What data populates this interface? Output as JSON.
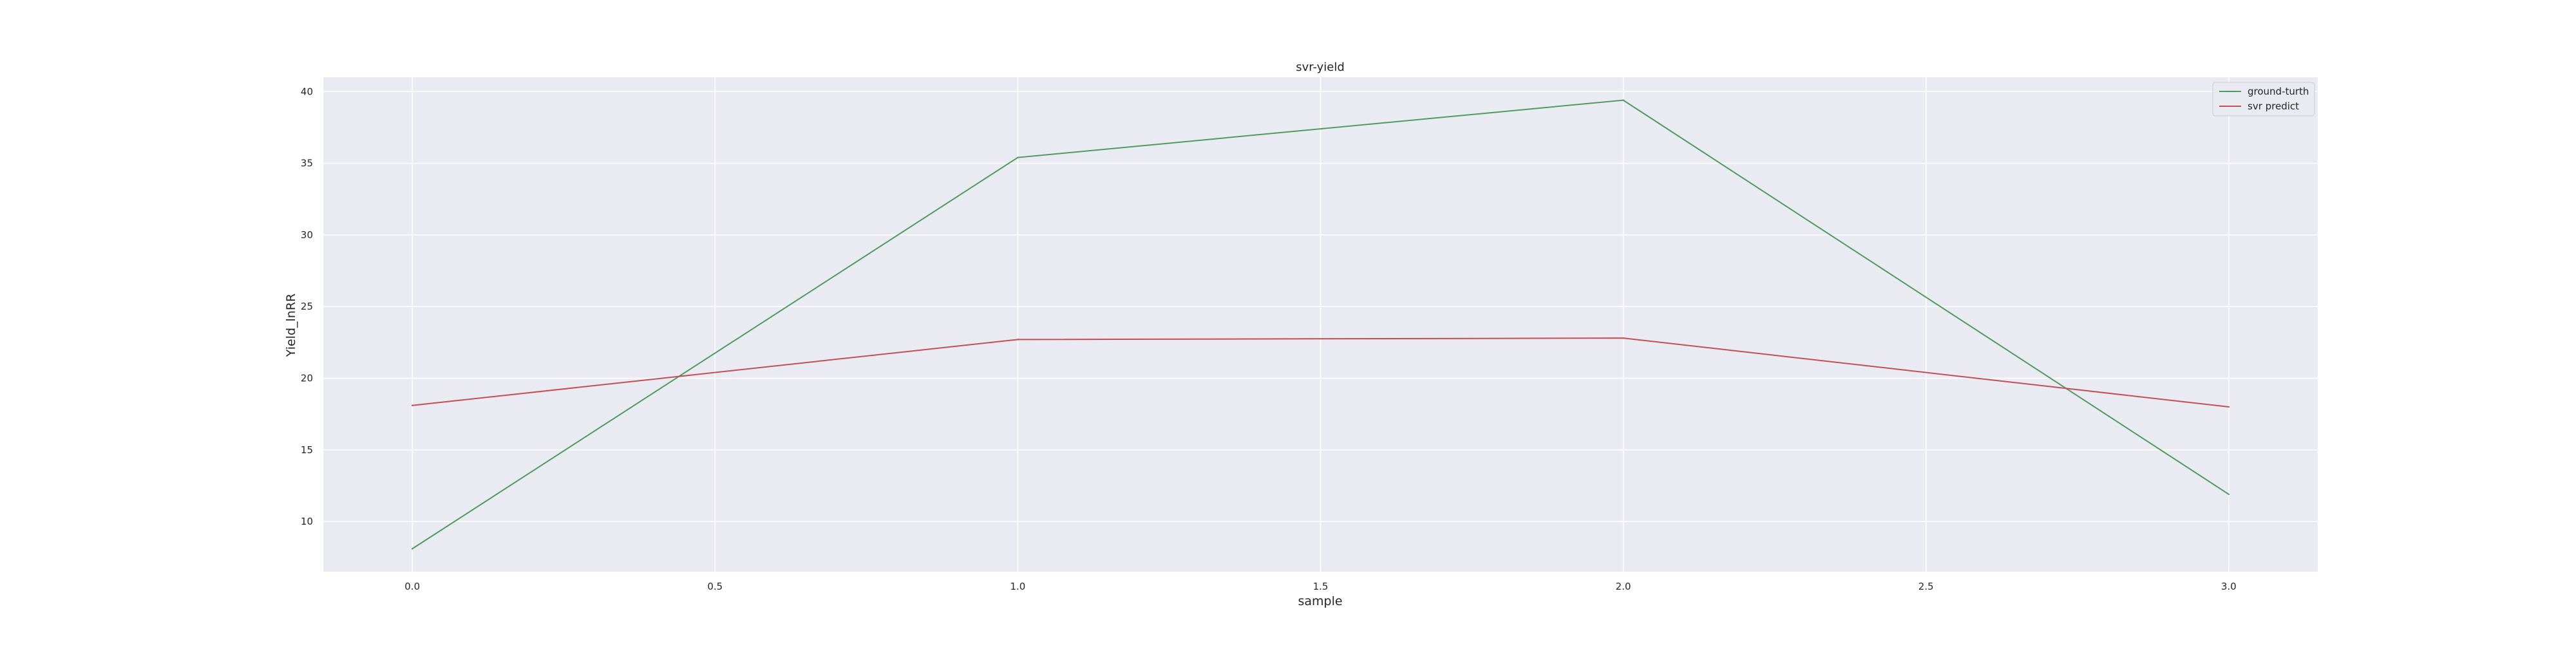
{
  "chart_data": {
    "type": "line",
    "title": "svr-yield",
    "xlabel": "sample",
    "ylabel": "Yield_lnRR",
    "x": [
      0,
      1,
      2,
      3
    ],
    "xlim": [
      -0.147,
      3.147
    ],
    "ylim": [
      6.5,
      41.0
    ],
    "xticks": [
      0.0,
      0.5,
      1.0,
      1.5,
      2.0,
      2.5,
      3.0
    ],
    "xtick_labels": [
      "0.0",
      "0.5",
      "1.0",
      "1.5",
      "2.0",
      "2.5",
      "3.0"
    ],
    "yticks": [
      10,
      15,
      20,
      25,
      30,
      35,
      40
    ],
    "ytick_labels": [
      "10",
      "15",
      "20",
      "25",
      "30",
      "35",
      "40"
    ],
    "grid": true,
    "legend_position": "top-right",
    "series": [
      {
        "name": "ground-turth",
        "color": "#4f9a5c",
        "values": [
          8.1,
          35.4,
          39.4,
          11.9
        ]
      },
      {
        "name": "svr predict",
        "color": "#c44e52",
        "values": [
          18.1,
          22.7,
          22.8,
          18.0
        ]
      }
    ]
  }
}
